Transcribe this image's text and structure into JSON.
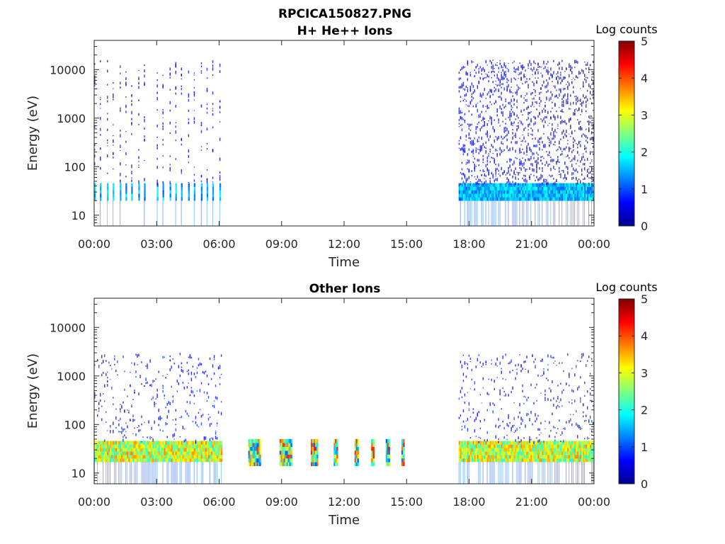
{
  "figure": {
    "title": "RPCICA150827.PNG"
  },
  "chart_data": [
    {
      "type": "heatmap",
      "title": "H+ He++ Ions",
      "xlabel": "Time",
      "ylabel": "Energy (eV)",
      "x_ticks": [
        "00:00",
        "03:00",
        "06:00",
        "09:00",
        "12:00",
        "15:00",
        "18:00",
        "21:00",
        "00:00"
      ],
      "y_ticks": [
        "10",
        "100",
        "1000",
        "10000"
      ],
      "y_scale": "log",
      "ylim": [
        6,
        40000
      ],
      "xlim_hours": [
        0,
        24
      ],
      "colorbar": {
        "label": "Log counts",
        "ticks": [
          "0",
          "1",
          "2",
          "3",
          "4",
          "5"
        ],
        "range": [
          0,
          5
        ],
        "colormap": "jet"
      },
      "coverage": [
        {
          "start_hour": 0.0,
          "end_hour": 6.15,
          "pattern": "periodic",
          "period_hours": 0.3
        },
        {
          "start_hour": 17.5,
          "end_hour": 24.0,
          "pattern": "continuous"
        }
      ],
      "peak_band_ev": [
        20,
        45
      ],
      "peak_band_log_counts": 1.8,
      "background_log_counts": 0.3
    },
    {
      "type": "heatmap",
      "title": "Other Ions",
      "xlabel": "Time",
      "ylabel": "Energy (eV)",
      "x_ticks": [
        "00:00",
        "03:00",
        "06:00",
        "09:00",
        "12:00",
        "15:00",
        "18:00",
        "21:00",
        "00:00"
      ],
      "y_ticks": [
        "10",
        "100",
        "1000",
        "10000"
      ],
      "y_scale": "log",
      "ylim": [
        6,
        40000
      ],
      "xlim_hours": [
        0,
        24
      ],
      "colorbar": {
        "label": "Log counts",
        "ticks": [
          "0",
          "1",
          "2",
          "3",
          "4",
          "5"
        ],
        "range": [
          0,
          5
        ],
        "colormap": "jet"
      },
      "coverage": [
        {
          "start_hour": 0.0,
          "end_hour": 6.15,
          "pattern": "dense"
        },
        {
          "start_hour": 17.5,
          "end_hour": 24.0,
          "pattern": "dense"
        }
      ],
      "peak_band_ev": [
        17,
        45
      ],
      "peak_band_log_counts": 3.4,
      "bursts": [
        {
          "start_hour": 7.4,
          "end_hour": 8.0
        },
        {
          "start_hour": 8.9,
          "end_hour": 9.5
        },
        {
          "start_hour": 10.4,
          "end_hour": 10.75
        },
        {
          "start_hour": 11.5,
          "end_hour": 11.7
        },
        {
          "start_hour": 12.5,
          "end_hour": 12.7
        },
        {
          "start_hour": 13.3,
          "end_hour": 13.45
        },
        {
          "start_hour": 14.0,
          "end_hour": 14.2
        },
        {
          "start_hour": 14.75,
          "end_hour": 14.9
        }
      ],
      "burst_energy_ev": [
        14,
        50
      ]
    }
  ]
}
